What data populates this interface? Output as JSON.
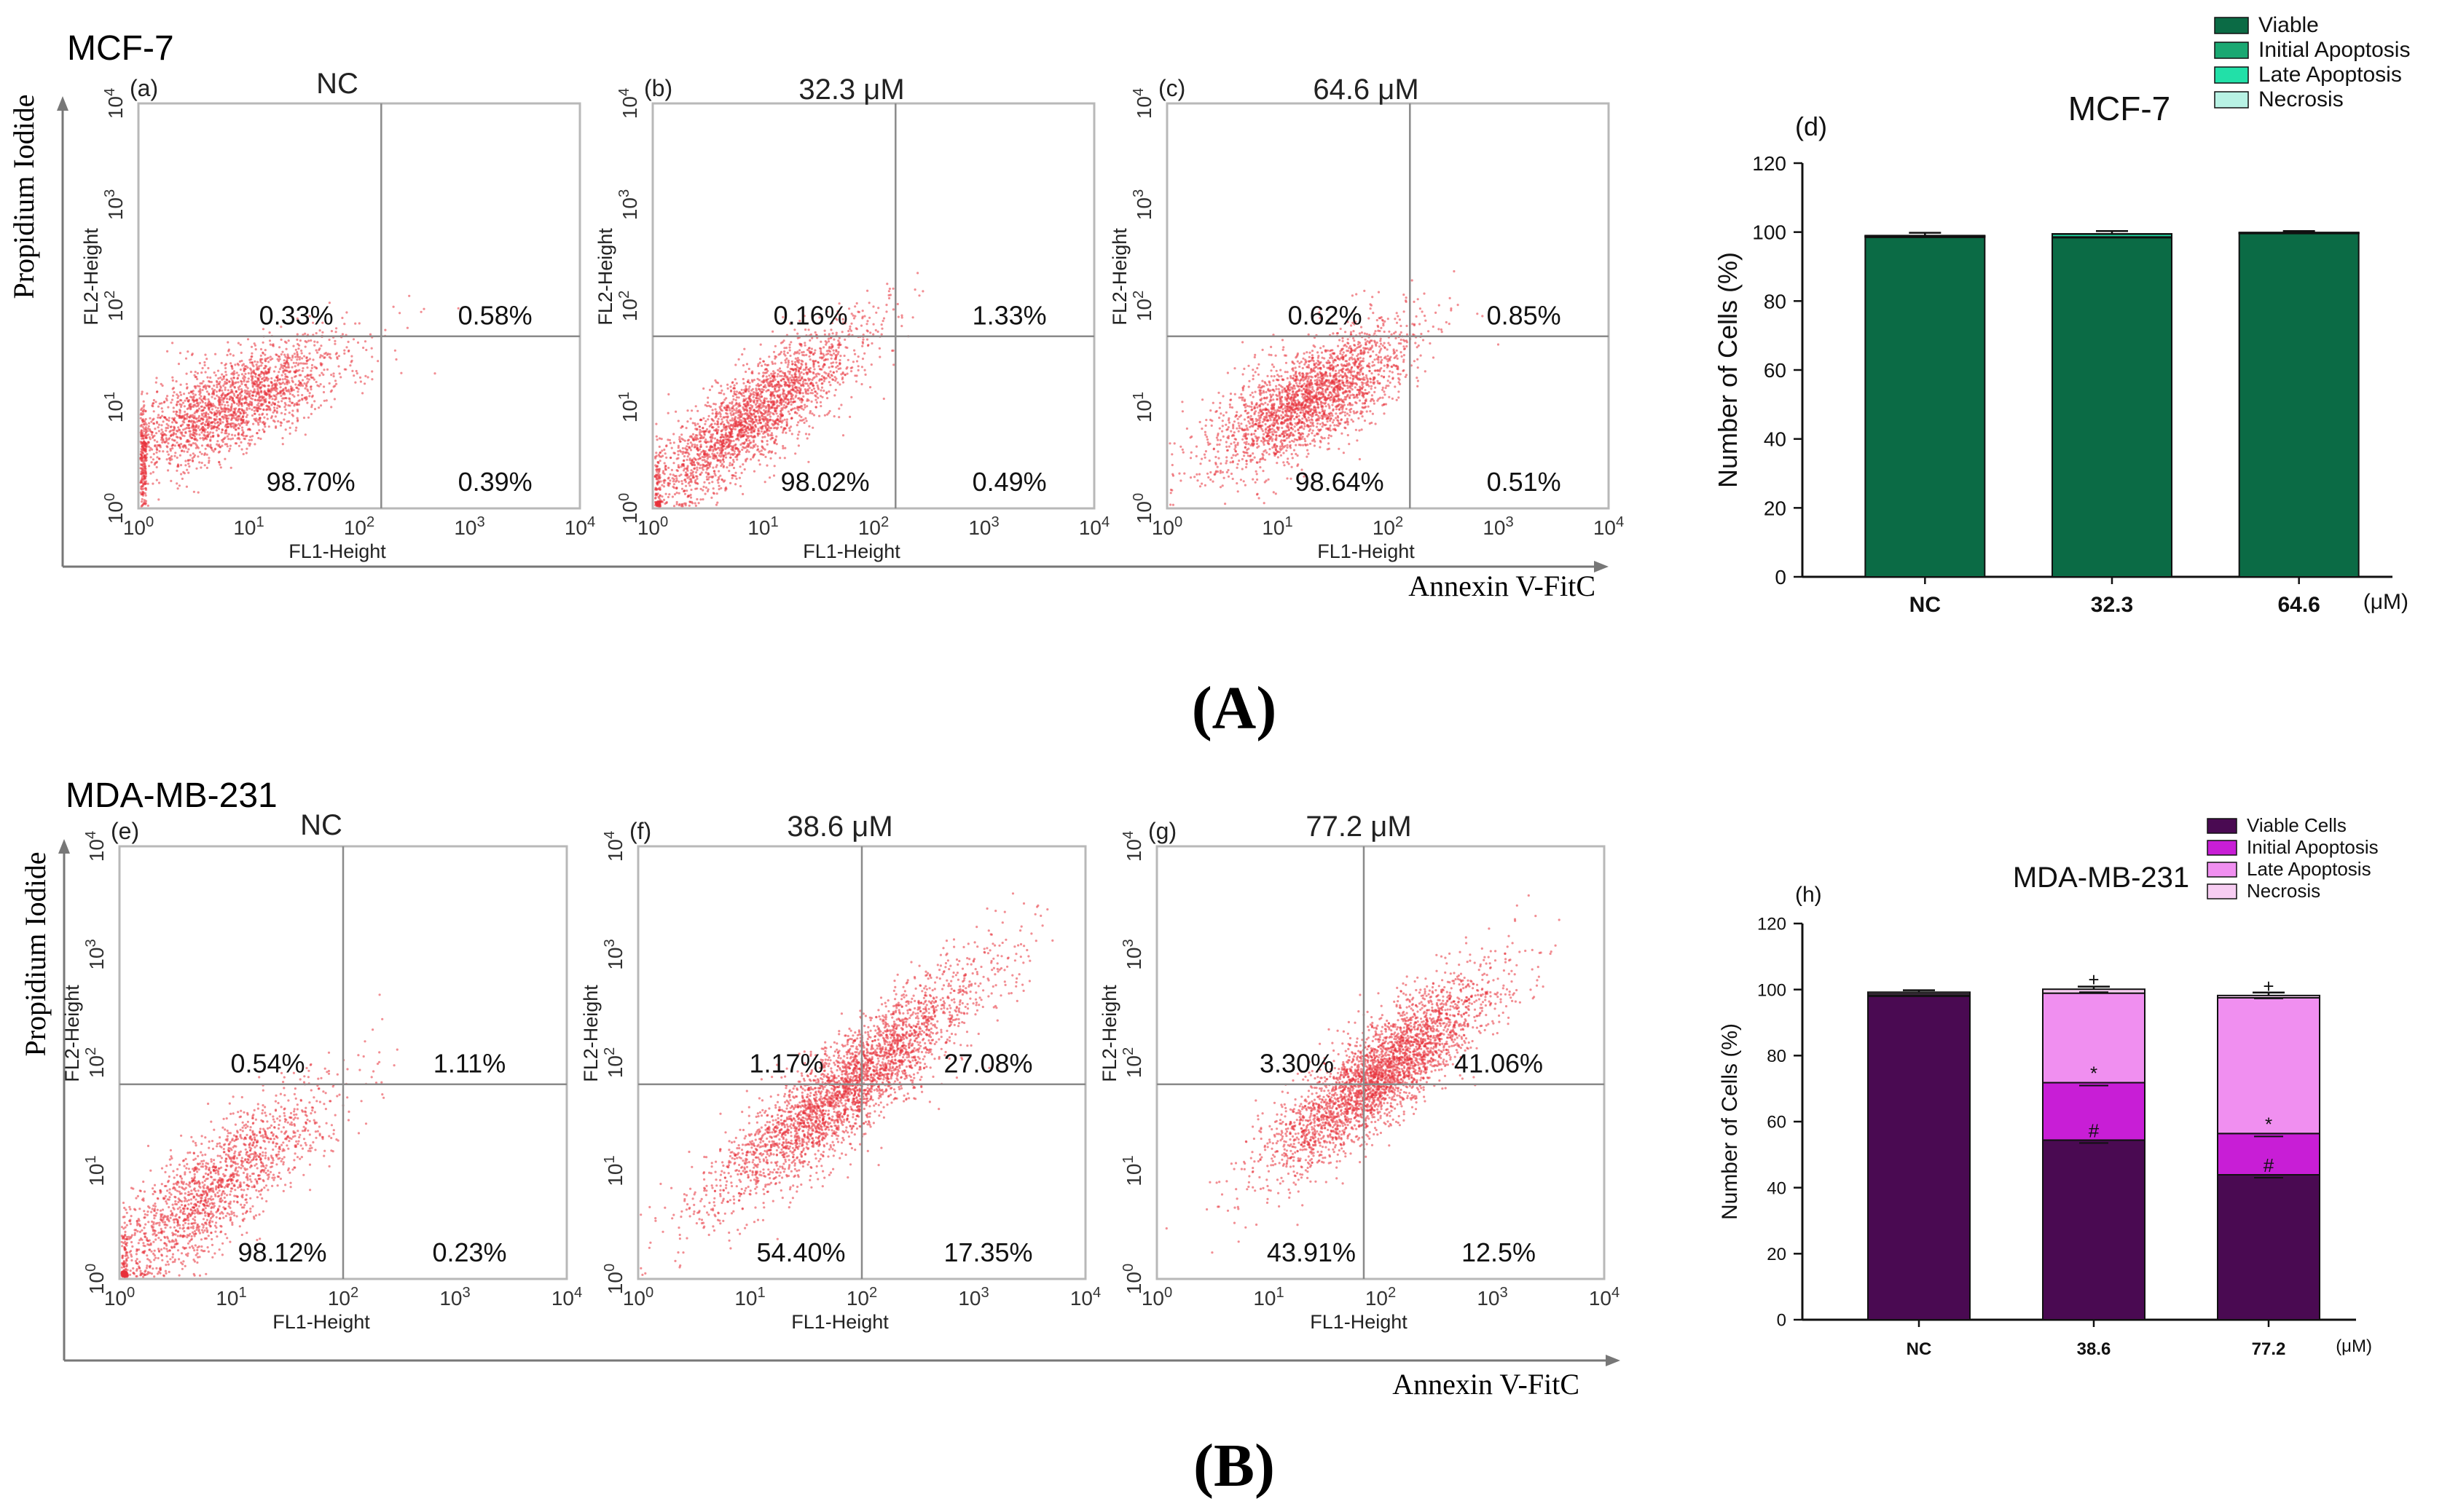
{
  "panel_A": {
    "cell_line": "MCF-7",
    "y_axis_label": "Propidium Iodide",
    "x_axis_label": "Annexin V-FitC",
    "caption": "(A)"
  },
  "panel_B": {
    "cell_line": "MDA-MB-231",
    "y_axis_label": "Propidium Iodide",
    "x_axis_label": "Annexin V-FitC",
    "caption": "(B)"
  },
  "chart_data": [
    {
      "type": "scatter",
      "subtype": "flow-cytometry-quadrant",
      "letter": "(a)",
      "title": "NC",
      "xlabel": "FL1-Height",
      "ylabel": "FL2-Height",
      "x_ticks": [
        "10^0",
        "10^1",
        "10^2",
        "10^3",
        "10^4"
      ],
      "y_ticks": [
        "10^0",
        "10^1",
        "10^2",
        "10^3",
        "10^4"
      ],
      "xlim_log10": [
        0,
        4
      ],
      "ylim_log10": [
        0,
        4
      ],
      "quadrants": {
        "upper_left": "0.33%",
        "upper_right": "0.58%",
        "lower_left": "98.70%",
        "lower_right": "0.39%"
      },
      "gate_log10": {
        "x": 2.2,
        "y": 1.7
      },
      "population": {
        "center_log10": [
          0.8,
          1.0
        ],
        "spread": [
          0.55,
          0.35
        ],
        "corr": 0.75,
        "points": 2200
      },
      "color": "#e8323a"
    },
    {
      "type": "scatter",
      "subtype": "flow-cytometry-quadrant",
      "letter": "(b)",
      "title": "32.3 μM",
      "xlabel": "FL1-Height",
      "ylabel": "FL2-Height",
      "x_ticks": [
        "10^0",
        "10^1",
        "10^2",
        "10^3",
        "10^4"
      ],
      "y_ticks": [
        "10^0",
        "10^1",
        "10^2",
        "10^3",
        "10^4"
      ],
      "xlim_log10": [
        0,
        4
      ],
      "ylim_log10": [
        0,
        4
      ],
      "quadrants": {
        "upper_left": "0.16%",
        "upper_right": "1.33%",
        "lower_left": "98.02%",
        "lower_right": "0.49%"
      },
      "gate_log10": {
        "x": 2.2,
        "y": 1.7
      },
      "population": {
        "center_log10": [
          0.9,
          0.9
        ],
        "spread": [
          0.5,
          0.45
        ],
        "corr": 0.85,
        "points": 2400
      },
      "color": "#e8323a"
    },
    {
      "type": "scatter",
      "subtype": "flow-cytometry-quadrant",
      "letter": "(c)",
      "title": "64.6 μM",
      "xlabel": "FL1-Height",
      "ylabel": "FL2-Height",
      "x_ticks": [
        "10^0",
        "10^1",
        "10^2",
        "10^3",
        "10^4"
      ],
      "y_ticks": [
        "10^0",
        "10^1",
        "10^2",
        "10^3",
        "10^4"
      ],
      "xlim_log10": [
        0,
        4
      ],
      "ylim_log10": [
        0,
        4
      ],
      "quadrants": {
        "upper_left": "0.62%",
        "upper_right": "0.85%",
        "lower_left": "98.64%",
        "lower_right": "0.51%"
      },
      "gate_log10": {
        "x": 2.2,
        "y": 1.7
      },
      "population": {
        "center_log10": [
          1.3,
          1.1
        ],
        "spread": [
          0.45,
          0.35
        ],
        "corr": 0.7,
        "points": 2400
      },
      "color": "#e8323a"
    },
    {
      "type": "bar",
      "stacked": true,
      "letter": "(d)",
      "title": "MCF-7",
      "categories": [
        "NC",
        "32.3",
        "64.6"
      ],
      "unit": "(μM)",
      "ylabel": "Number of Cells (%)",
      "ylim": [
        0,
        120
      ],
      "y_ticks": [
        0,
        20,
        40,
        60,
        80,
        100,
        120
      ],
      "series": [
        {
          "name": "Viable",
          "values": [
            98.5,
            98.4,
            99.6
          ],
          "color": "#0b6b45"
        },
        {
          "name": "Initial Apoptosis",
          "values": [
            0.2,
            0.2,
            0.1
          ],
          "color": "#1aa872"
        },
        {
          "name": "Late Apoptosis",
          "values": [
            0.2,
            0.8,
            0.1
          ],
          "color": "#22e0a8"
        },
        {
          "name": "Necrosis",
          "values": [
            0.1,
            0.1,
            0.1
          ],
          "color": "#b8f2e4"
        }
      ],
      "error": [
        0.8,
        0.8,
        0.4
      ]
    },
    {
      "type": "scatter",
      "subtype": "flow-cytometry-quadrant",
      "letter": "(e)",
      "title": "NC",
      "xlabel": "FL1-Height",
      "ylabel": "FL2-Height",
      "x_ticks": [
        "10^0",
        "10^1",
        "10^2",
        "10^3",
        "10^4"
      ],
      "y_ticks": [
        "10^0",
        "10^1",
        "10^2",
        "10^3",
        "10^4"
      ],
      "xlim_log10": [
        0,
        4
      ],
      "ylim_log10": [
        0,
        4
      ],
      "quadrants": {
        "upper_left": "0.54%",
        "upper_right": "1.11%",
        "lower_left": "98.12%",
        "lower_right": "0.23%"
      },
      "gate_log10": {
        "x": 2.0,
        "y": 1.8
      },
      "population": {
        "center_log10": [
          0.8,
          0.8
        ],
        "spread": [
          0.55,
          0.5
        ],
        "corr": 0.85,
        "points": 1800
      },
      "color": "#e8323a"
    },
    {
      "type": "scatter",
      "subtype": "flow-cytometry-quadrant",
      "letter": "(f)",
      "title": "38.6 μM",
      "xlabel": "FL1-Height",
      "ylabel": "FL2-Height",
      "x_ticks": [
        "10^0",
        "10^1",
        "10^2",
        "10^3",
        "10^4"
      ],
      "y_ticks": [
        "10^0",
        "10^1",
        "10^2",
        "10^3",
        "10^4"
      ],
      "xlim_log10": [
        0,
        4
      ],
      "ylim_log10": [
        0,
        4
      ],
      "quadrants": {
        "upper_left": "1.17%",
        "upper_right": "27.08%",
        "lower_left": "54.40%",
        "lower_right": "17.35%"
      },
      "gate_log10": {
        "x": 2.0,
        "y": 1.8
      },
      "population": {
        "center_log10": [
          1.9,
          1.8
        ],
        "spread": [
          0.6,
          0.55
        ],
        "corr": 0.9,
        "points": 3200
      },
      "color": "#e8323a"
    },
    {
      "type": "scatter",
      "subtype": "flow-cytometry-quadrant",
      "letter": "(g)",
      "title": "77.2 μM",
      "xlabel": "FL1-Height",
      "ylabel": "FL2-Height",
      "x_ticks": [
        "10^0",
        "10^1",
        "10^2",
        "10^3",
        "10^4"
      ],
      "y_ticks": [
        "10^0",
        "10^1",
        "10^2",
        "10^3",
        "10^4"
      ],
      "xlim_log10": [
        0,
        4
      ],
      "ylim_log10": [
        0,
        4
      ],
      "quadrants": {
        "upper_left": "3.30%",
        "upper_right": "41.06%",
        "lower_left": "43.91%",
        "lower_right": "12.5%"
      },
      "gate_log10": {
        "x": 1.85,
        "y": 1.8
      },
      "population": {
        "center_log10": [
          2.0,
          1.9
        ],
        "spread": [
          0.5,
          0.45
        ],
        "corr": 0.85,
        "points": 3200
      },
      "color": "#e8323a"
    },
    {
      "type": "bar",
      "stacked": true,
      "letter": "(h)",
      "title": "MDA-MB-231",
      "categories": [
        "NC",
        "38.6",
        "77.2"
      ],
      "unit": "(μM)",
      "ylabel": "Number of Cells (%)",
      "ylim": [
        0,
        120
      ],
      "y_ticks": [
        0,
        20,
        40,
        60,
        80,
        100,
        120
      ],
      "series": [
        {
          "name": "Viable Cells",
          "values": [
            98,
            54.4,
            43.9
          ],
          "color": "#4a0a52"
        },
        {
          "name": "Initial Apoptosis",
          "values": [
            0.2,
            17.4,
            12.5
          ],
          "color": "#c81ed6"
        },
        {
          "name": "Late Apoptosis",
          "values": [
            0.5,
            27.1,
            41.1
          ],
          "color": "#f08ff0"
        },
        {
          "name": "Necrosis",
          "values": [
            0.5,
            1.2,
            0.7
          ],
          "color": "#f7cdf2"
        }
      ],
      "error": [
        0.6,
        0.8,
        0.9
      ],
      "annotations": [
        {
          "category": "38.6",
          "series": "Viable Cells",
          "symbol": "#"
        },
        {
          "category": "38.6",
          "series": "Initial Apoptosis",
          "symbol": "*"
        },
        {
          "category": "38.6",
          "series": "Necrosis",
          "symbol": "+"
        },
        {
          "category": "77.2",
          "series": "Viable Cells",
          "symbol": "#"
        },
        {
          "category": "77.2",
          "series": "Initial Apoptosis",
          "symbol": "*"
        },
        {
          "category": "77.2",
          "series": "Necrosis",
          "symbol": "+"
        }
      ]
    }
  ]
}
